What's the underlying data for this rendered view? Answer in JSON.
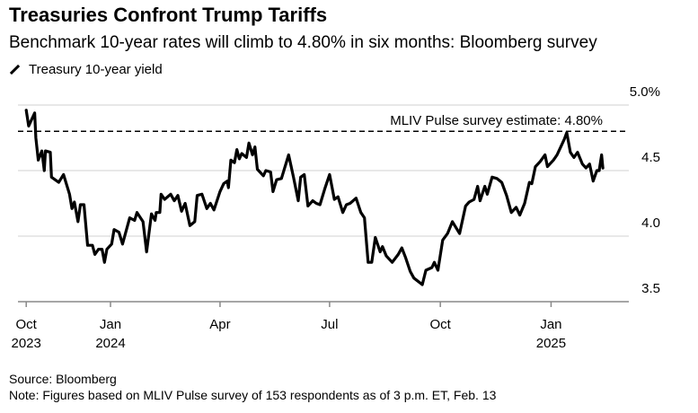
{
  "header": {
    "title": "Treasuries Confront Trump Tariffs",
    "subtitle": "Benchmark 10-year rates will climb to 4.80% in six months: Bloomberg survey"
  },
  "footer": {
    "source": "Source: Bloomberg",
    "note": "Note: Figures based on MLIV Pulse survey of 153 respondents as of 3 p.m. ET, Feb. 13"
  },
  "chart_data": {
    "type": "line",
    "title": "Treasuries Confront Trump Tariffs",
    "series": [
      {
        "name": "Treasury 10-year yield",
        "color": "#000000",
        "points": [
          [
            "2023-10-23",
            4.96
          ],
          [
            "2023-10-25",
            4.84
          ],
          [
            "2023-10-27",
            4.88
          ],
          [
            "2023-10-30",
            4.94
          ],
          [
            "2023-10-31",
            4.75
          ],
          [
            "2023-11-02",
            4.58
          ],
          [
            "2023-11-05",
            4.65
          ],
          [
            "2023-11-07",
            4.5
          ],
          [
            "2023-11-08",
            4.65
          ],
          [
            "2023-11-12",
            4.64
          ],
          [
            "2023-11-13",
            4.45
          ],
          [
            "2023-11-19",
            4.41
          ],
          [
            "2023-11-23",
            4.47
          ],
          [
            "2023-11-28",
            4.32
          ],
          [
            "2023-11-30",
            4.21
          ],
          [
            "2023-12-02",
            4.26
          ],
          [
            "2023-12-05",
            4.11
          ],
          [
            "2023-12-07",
            4.24
          ],
          [
            "2023-12-10",
            4.24
          ],
          [
            "2023-12-13",
            3.93
          ],
          [
            "2023-12-17",
            3.93
          ],
          [
            "2023-12-19",
            3.86
          ],
          [
            "2023-12-22",
            3.9
          ],
          [
            "2023-12-25",
            3.9
          ],
          [
            "2023-12-27",
            3.8
          ],
          [
            "2023-12-29",
            3.9
          ],
          [
            "2024-01-02",
            3.94
          ],
          [
            "2024-01-04",
            4.05
          ],
          [
            "2024-01-08",
            4.03
          ],
          [
            "2024-01-11",
            3.94
          ],
          [
            "2024-01-17",
            4.14
          ],
          [
            "2024-01-21",
            4.12
          ],
          [
            "2024-01-23",
            4.18
          ],
          [
            "2024-01-28",
            4.11
          ],
          [
            "2024-01-31",
            3.88
          ],
          [
            "2024-02-04",
            4.17
          ],
          [
            "2024-02-07",
            4.12
          ],
          [
            "2024-02-08",
            4.18
          ],
          [
            "2024-02-11",
            4.18
          ],
          [
            "2024-02-12",
            4.32
          ],
          [
            "2024-02-15",
            4.28
          ],
          [
            "2024-02-20",
            4.32
          ],
          [
            "2024-02-23",
            4.27
          ],
          [
            "2024-02-26",
            4.31
          ],
          [
            "2024-02-29",
            4.19
          ],
          [
            "2024-03-03",
            4.25
          ],
          [
            "2024-03-07",
            4.08
          ],
          [
            "2024-03-11",
            4.11
          ],
          [
            "2024-03-13",
            4.31
          ],
          [
            "2024-03-17",
            4.32
          ],
          [
            "2024-03-21",
            4.21
          ],
          [
            "2024-03-24",
            4.25
          ],
          [
            "2024-03-27",
            4.2
          ],
          [
            "2024-04-01",
            4.34
          ],
          [
            "2024-04-04",
            4.4
          ],
          [
            "2024-04-07",
            4.42
          ],
          [
            "2024-04-08",
            4.37
          ],
          [
            "2024-04-10",
            4.58
          ],
          [
            "2024-04-13",
            4.56
          ],
          [
            "2024-04-15",
            4.66
          ],
          [
            "2024-04-17",
            4.59
          ],
          [
            "2024-04-19",
            4.63
          ],
          [
            "2024-04-23",
            4.6
          ],
          [
            "2024-04-25",
            4.71
          ],
          [
            "2024-04-28",
            4.62
          ],
          [
            "2024-04-30",
            4.68
          ],
          [
            "2024-05-02",
            4.51
          ],
          [
            "2024-05-07",
            4.46
          ],
          [
            "2024-05-09",
            4.5
          ],
          [
            "2024-05-13",
            4.49
          ],
          [
            "2024-05-15",
            4.34
          ],
          [
            "2024-05-18",
            4.43
          ],
          [
            "2024-05-22",
            4.44
          ],
          [
            "2024-05-28",
            4.62
          ],
          [
            "2024-06-01",
            4.45
          ],
          [
            "2024-06-05",
            4.27
          ],
          [
            "2024-06-07",
            4.45
          ],
          [
            "2024-06-10",
            4.47
          ],
          [
            "2024-06-13",
            4.23
          ],
          [
            "2024-06-17",
            4.27
          ],
          [
            "2024-06-20",
            4.25
          ],
          [
            "2024-06-23",
            4.24
          ],
          [
            "2024-06-27",
            4.36
          ],
          [
            "2024-07-01",
            4.47
          ],
          [
            "2024-07-05",
            4.28
          ],
          [
            "2024-07-08",
            4.3
          ],
          [
            "2024-07-12",
            4.18
          ],
          [
            "2024-07-15",
            4.24
          ],
          [
            "2024-07-18",
            4.25
          ],
          [
            "2024-07-23",
            4.29
          ],
          [
            "2024-07-27",
            4.18
          ],
          [
            "2024-07-30",
            4.14
          ],
          [
            "2024-08-02",
            3.8
          ],
          [
            "2024-08-05",
            3.8
          ],
          [
            "2024-08-08",
            3.99
          ],
          [
            "2024-08-12",
            3.88
          ],
          [
            "2024-08-14",
            3.92
          ],
          [
            "2024-08-17",
            3.85
          ],
          [
            "2024-08-22",
            3.8
          ],
          [
            "2024-08-27",
            3.86
          ],
          [
            "2024-08-30",
            3.91
          ],
          [
            "2024-09-02",
            3.84
          ],
          [
            "2024-09-06",
            3.73
          ],
          [
            "2024-09-09",
            3.68
          ],
          [
            "2024-09-16",
            3.63
          ],
          [
            "2024-09-19",
            3.74
          ],
          [
            "2024-09-24",
            3.76
          ],
          [
            "2024-09-26",
            3.8
          ],
          [
            "2024-09-29",
            3.74
          ],
          [
            "2024-10-03",
            3.97
          ],
          [
            "2024-10-07",
            4.02
          ],
          [
            "2024-10-11",
            4.11
          ],
          [
            "2024-10-17",
            4.02
          ],
          [
            "2024-10-22",
            4.23
          ],
          [
            "2024-10-25",
            4.26
          ],
          [
            "2024-10-29",
            4.28
          ],
          [
            "2024-11-01",
            4.38
          ],
          [
            "2024-11-03",
            4.27
          ],
          [
            "2024-11-07",
            4.38
          ],
          [
            "2024-11-09",
            4.32
          ],
          [
            "2024-11-13",
            4.45
          ],
          [
            "2024-11-17",
            4.44
          ],
          [
            "2024-11-21",
            4.41
          ],
          [
            "2024-11-25",
            4.31
          ],
          [
            "2024-11-29",
            4.18
          ],
          [
            "2024-12-03",
            4.22
          ],
          [
            "2024-12-06",
            4.16
          ],
          [
            "2024-12-10",
            4.25
          ],
          [
            "2024-12-14",
            4.41
          ],
          [
            "2024-12-16",
            4.4
          ],
          [
            "2024-12-19",
            4.53
          ],
          [
            "2024-12-23",
            4.57
          ],
          [
            "2024-12-27",
            4.62
          ],
          [
            "2024-12-29",
            4.53
          ],
          [
            "2025-01-03",
            4.58
          ],
          [
            "2025-01-06",
            4.62
          ],
          [
            "2025-01-09",
            4.68
          ],
          [
            "2025-01-12",
            4.74
          ],
          [
            "2025-01-14",
            4.79
          ],
          [
            "2025-01-17",
            4.64
          ],
          [
            "2025-01-20",
            4.6
          ],
          [
            "2025-01-23",
            4.64
          ],
          [
            "2025-01-27",
            4.55
          ],
          [
            "2025-01-30",
            4.52
          ],
          [
            "2025-02-02",
            4.55
          ],
          [
            "2025-02-05",
            4.42
          ],
          [
            "2025-02-08",
            4.5
          ],
          [
            "2025-02-10",
            4.5
          ],
          [
            "2025-02-12",
            4.62
          ],
          [
            "2025-02-13",
            4.52
          ]
        ]
      }
    ],
    "reference_line": {
      "value": 4.8,
      "label": "MLIV Pulse survey estimate: 4.80%",
      "style": "dashed"
    },
    "ylim": [
      3.5,
      5.0
    ],
    "yticks": [
      {
        "value": 5.0,
        "label": "5.0%"
      },
      {
        "value": 4.5,
        "label": "4.5"
      },
      {
        "value": 4.0,
        "label": "4.0"
      },
      {
        "value": 3.5,
        "label": "3.5"
      }
    ],
    "xticks": [
      {
        "date": "2023-10-23",
        "label": "Oct",
        "sublabel": "2023"
      },
      {
        "date": "2024-01-01",
        "label": "Jan",
        "sublabel": "2024"
      },
      {
        "date": "2024-04-01",
        "label": "Apr",
        "sublabel": ""
      },
      {
        "date": "2024-07-01",
        "label": "Jul",
        "sublabel": ""
      },
      {
        "date": "2024-10-01",
        "label": "Oct",
        "sublabel": ""
      },
      {
        "date": "2025-01-01",
        "label": "Jan",
        "sublabel": "2025"
      }
    ],
    "grid": true,
    "legend": "top-left"
  }
}
